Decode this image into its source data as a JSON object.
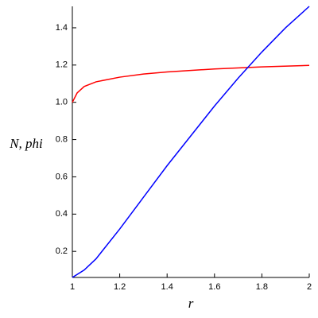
{
  "chart_data": {
    "type": "line",
    "x_label": "r",
    "y_label": "N, phi",
    "xlim": [
      1,
      2
    ],
    "ylim": [
      0.06,
      1.515
    ],
    "xticks": [
      1,
      1.2,
      1.4,
      1.6,
      1.8,
      2
    ],
    "yticks": [
      0.2,
      0.4,
      0.6,
      0.8,
      {
        "value": 1,
        "label": "1.0"
      },
      1.2,
      1.4
    ],
    "series": [
      {
        "color": "#ff0000",
        "x": [
          1,
          1.02,
          1.05,
          1.1,
          1.2,
          1.3,
          1.4,
          1.6,
          1.8,
          2
        ],
        "values": [
          1.0,
          1.05,
          1.085,
          1.11,
          1.135,
          1.152,
          1.163,
          1.179,
          1.19,
          1.198
        ]
      },
      {
        "color": "#0000ff",
        "x": [
          1,
          1.05,
          1.1,
          1.2,
          1.3,
          1.4,
          1.5,
          1.6,
          1.7,
          1.8,
          1.9,
          2
        ],
        "values": [
          0.06,
          0.1,
          0.16,
          0.32,
          0.49,
          0.66,
          0.82,
          0.98,
          1.13,
          1.27,
          1.4,
          1.515
        ]
      }
    ]
  }
}
